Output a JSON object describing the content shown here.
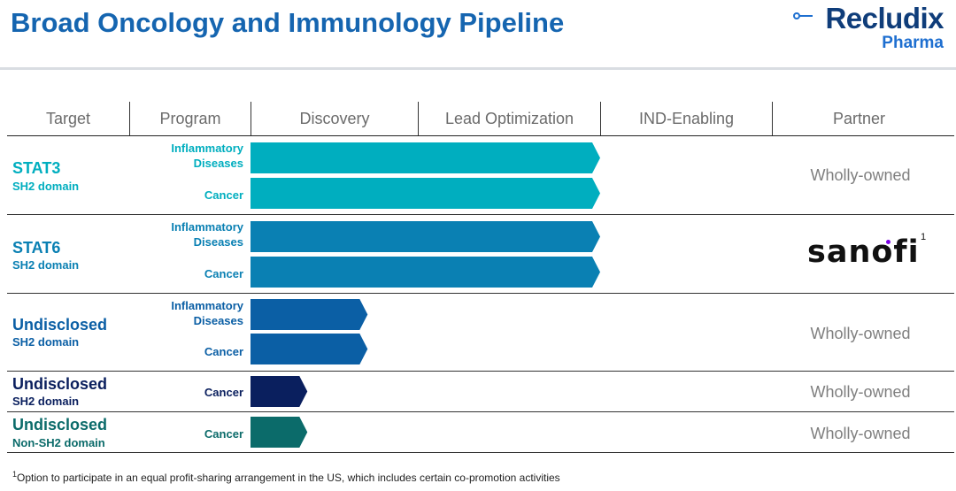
{
  "title": "Broad Oncology and Immunology Pipeline",
  "logo": {
    "main": "Recludix",
    "sub": "Pharma"
  },
  "chart_data": {
    "type": "bar",
    "stages": [
      "Discovery",
      "Lead Optimization",
      "IND-Enabling"
    ],
    "headers": {
      "target": "Target",
      "program": "Program",
      "discovery": "Discovery",
      "lead_opt": "Lead Optimization",
      "ind": "IND-Enabling",
      "partner": "Partner"
    },
    "groups": [
      {
        "name": "STAT3",
        "sub": "SH2 domain",
        "color": "#00aebf",
        "partner": "Wholly-owned",
        "programs": [
          {
            "label": "Inflammatory Diseases",
            "stage_progress": 2.0
          },
          {
            "label": "Cancer",
            "stage_progress": 2.0
          }
        ]
      },
      {
        "name": "STAT6",
        "sub": "SH2 domain",
        "color": "#0a80b3",
        "partner": "sanofi",
        "programs": [
          {
            "label": "Inflammatory Diseases",
            "stage_progress": 2.0
          },
          {
            "label": "Cancer",
            "stage_progress": 2.0
          }
        ]
      },
      {
        "name": "Undisclosed",
        "sub": "SH2 domain",
        "color": "#0b5fa5",
        "partner": "Wholly-owned",
        "programs": [
          {
            "label": "Inflammatory Diseases",
            "stage_progress": 0.7
          },
          {
            "label": "Cancer",
            "stage_progress": 0.7
          }
        ]
      },
      {
        "name": "Undisclosed",
        "sub": "SH2 domain",
        "color": "#0a1f5e",
        "partner": "Wholly-owned",
        "programs": [
          {
            "label": "Cancer",
            "stage_progress": 0.34
          }
        ]
      },
      {
        "name": "Undisclosed",
        "sub": "Non-SH2 domain",
        "color": "#0b6b6a",
        "partner": "Wholly-owned",
        "programs": [
          {
            "label": "Cancer",
            "stage_progress": 0.34
          }
        ]
      }
    ],
    "footnote_marker": "1"
  },
  "footnote": "Option to participate in an equal profit-sharing arrangement in the US, which includes certain co-promotion activities",
  "footnote_marker": "1"
}
